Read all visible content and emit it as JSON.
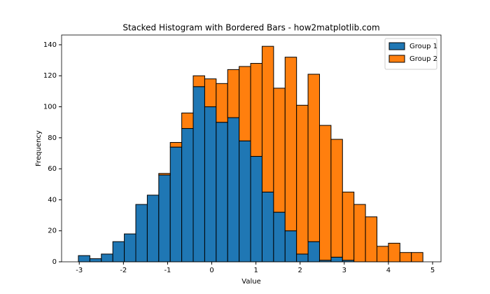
{
  "chart_data": {
    "type": "stacked_histogram",
    "title": "Stacked Histogram with Bordered Bars - how2matplotlib.com",
    "xlabel": "Value",
    "ylabel": "Frequency",
    "bins": [
      -3.02,
      -2.76,
      -2.5,
      -2.24,
      -1.98,
      -1.72,
      -1.46,
      -1.2,
      -0.94,
      -0.68,
      -0.42,
      -0.16,
      0.1,
      0.36,
      0.62,
      0.88,
      1.14,
      1.4,
      1.66,
      1.92,
      2.18,
      2.44,
      2.7,
      2.96,
      3.22,
      3.48,
      3.74,
      4.0,
      4.26,
      4.52,
      4.78
    ],
    "series": [
      {
        "name": "Group 1",
        "color": "#1f77b4",
        "values": [
          4,
          2,
          5,
          13,
          18,
          37,
          43,
          56,
          74,
          86,
          113,
          100,
          90,
          93,
          78,
          68,
          45,
          32,
          20,
          5,
          13,
          1,
          3,
          1,
          0,
          0,
          0,
          0,
          0,
          0
        ]
      },
      {
        "name": "Group 2",
        "color": "#ff7f0e",
        "values": [
          0,
          0,
          0,
          0,
          0,
          0,
          0,
          1,
          3,
          10,
          7,
          18,
          25,
          31,
          48,
          60,
          94,
          80,
          112,
          96,
          108,
          87,
          76,
          44,
          37,
          29,
          10,
          12,
          6,
          6
        ]
      }
    ],
    "edgecolor": "#000000",
    "xlim": [
      -3.4,
      5.19
    ],
    "ylim": [
      0,
      146.3
    ],
    "xticks": [
      -3,
      -2,
      -1,
      0,
      1,
      2,
      3,
      4,
      5
    ],
    "yticks": [
      0,
      20,
      40,
      60,
      80,
      100,
      120,
      140
    ],
    "legend": "upper right"
  }
}
